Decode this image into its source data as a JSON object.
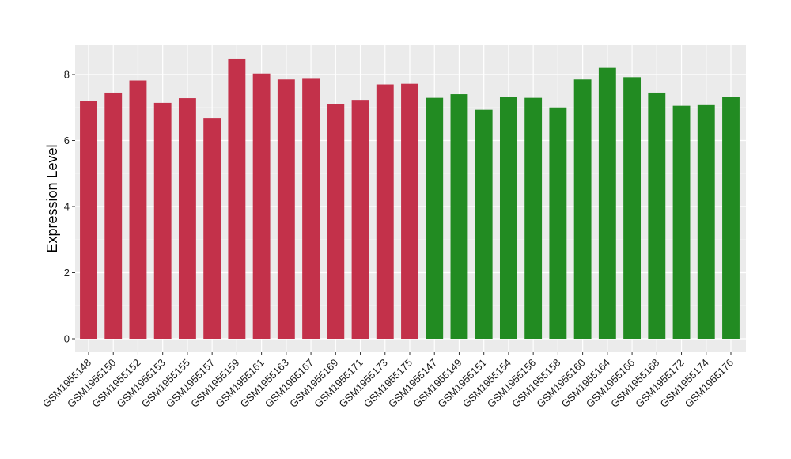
{
  "chart_data": {
    "type": "bar",
    "title": "",
    "xlabel": "",
    "ylabel": "Expression Level",
    "ylim": [
      0,
      8.85
    ],
    "yticks": [
      0,
      2,
      4,
      6,
      8
    ],
    "grid": true,
    "background": "#ebebeb",
    "categories": [
      "GSM1955148",
      "GSM1955150",
      "GSM1955152",
      "GSM1955153",
      "GSM1955155",
      "GSM1955157",
      "GSM1955159",
      "GSM1955161",
      "GSM1955163",
      "GSM1955167",
      "GSM1955169",
      "GSM1955171",
      "GSM1955173",
      "GSM1955175",
      "GSM1955147",
      "GSM1955149",
      "GSM1955151",
      "GSM1955154",
      "GSM1955156",
      "GSM1955158",
      "GSM1955160",
      "GSM1955164",
      "GSM1955166",
      "GSM1955168",
      "GSM1955172",
      "GSM1955174",
      "GSM1955176"
    ],
    "values": [
      7.2,
      7.45,
      7.82,
      7.14,
      7.28,
      6.68,
      8.48,
      8.03,
      7.85,
      7.87,
      7.1,
      7.23,
      7.7,
      7.72,
      7.29,
      7.4,
      6.93,
      7.31,
      7.29,
      7.0,
      7.85,
      8.2,
      7.92,
      7.45,
      7.05,
      7.07,
      7.31
    ],
    "colors": [
      "#c3314a",
      "#c3314a",
      "#c3314a",
      "#c3314a",
      "#c3314a",
      "#c3314a",
      "#c3314a",
      "#c3314a",
      "#c3314a",
      "#c3314a",
      "#c3314a",
      "#c3314a",
      "#c3314a",
      "#c3314a",
      "#228b22",
      "#228b22",
      "#228b22",
      "#228b22",
      "#228b22",
      "#228b22",
      "#228b22",
      "#228b22",
      "#228b22",
      "#228b22",
      "#228b22",
      "#228b22",
      "#228b22"
    ]
  }
}
